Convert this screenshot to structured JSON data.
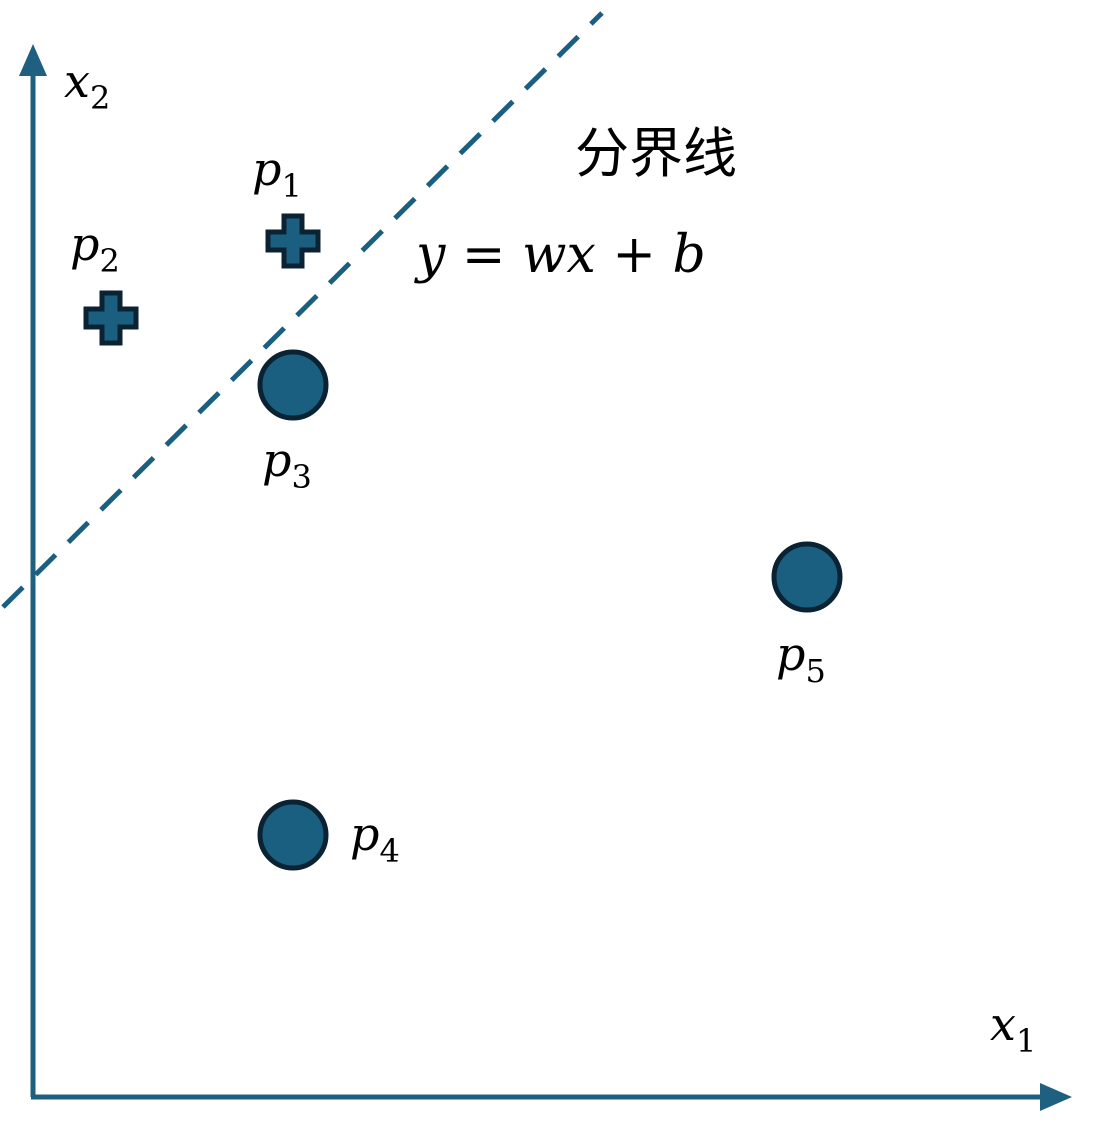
{
  "axes": {
    "x_label": {
      "base": "x",
      "sub": "1"
    },
    "y_label": {
      "base": "x",
      "sub": "2"
    }
  },
  "boundary": {
    "title": "分界线",
    "equation": "y = wx + b"
  },
  "points": [
    {
      "id": "p1",
      "base": "p",
      "sub": "1",
      "class": "positive",
      "marker": "plus"
    },
    {
      "id": "p2",
      "base": "p",
      "sub": "2",
      "class": "positive",
      "marker": "plus"
    },
    {
      "id": "p3",
      "base": "p",
      "sub": "3",
      "class": "negative",
      "marker": "circle"
    },
    {
      "id": "p4",
      "base": "p",
      "sub": "4",
      "class": "negative",
      "marker": "circle"
    },
    {
      "id": "p5",
      "base": "p",
      "sub": "5",
      "class": "negative",
      "marker": "circle"
    }
  ],
  "colors": {
    "axis": "#1f6080",
    "marker_fill": "#1b5f80",
    "marker_stroke": "#0b2233"
  }
}
